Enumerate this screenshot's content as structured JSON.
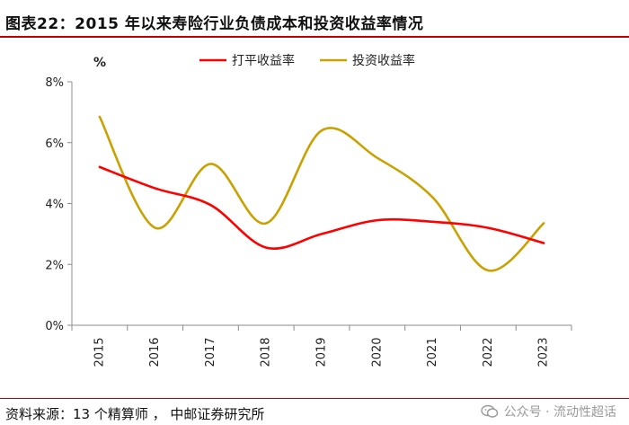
{
  "header": {
    "title": "图表22：2015 年以来寿险行业负债成本和投资收益率情况"
  },
  "chart_data": {
    "type": "line",
    "title": "",
    "ylabel": "%",
    "xlabel": "",
    "ylim": [
      0,
      8
    ],
    "yticks": [
      "0%",
      "2%",
      "4%",
      "6%",
      "8%"
    ],
    "categories": [
      "2015",
      "2016",
      "2017",
      "2018",
      "2019",
      "2020",
      "2021",
      "2022",
      "2023"
    ],
    "legend_position": "top",
    "series": [
      {
        "name": "打平收益率",
        "color": "#ff0000",
        "values": [
          5.2,
          4.5,
          3.95,
          2.55,
          3.0,
          3.45,
          3.4,
          3.2,
          2.7
        ]
      },
      {
        "name": "投资收益率",
        "color": "#c9a100",
        "values": [
          6.85,
          3.2,
          5.3,
          3.35,
          6.4,
          5.5,
          4.2,
          1.8,
          3.35
        ]
      }
    ]
  },
  "footer": {
    "source": "资料来源：13 个精算师 ， 中邮证券研究所",
    "watermark": "公众号 · 流动性超话"
  }
}
